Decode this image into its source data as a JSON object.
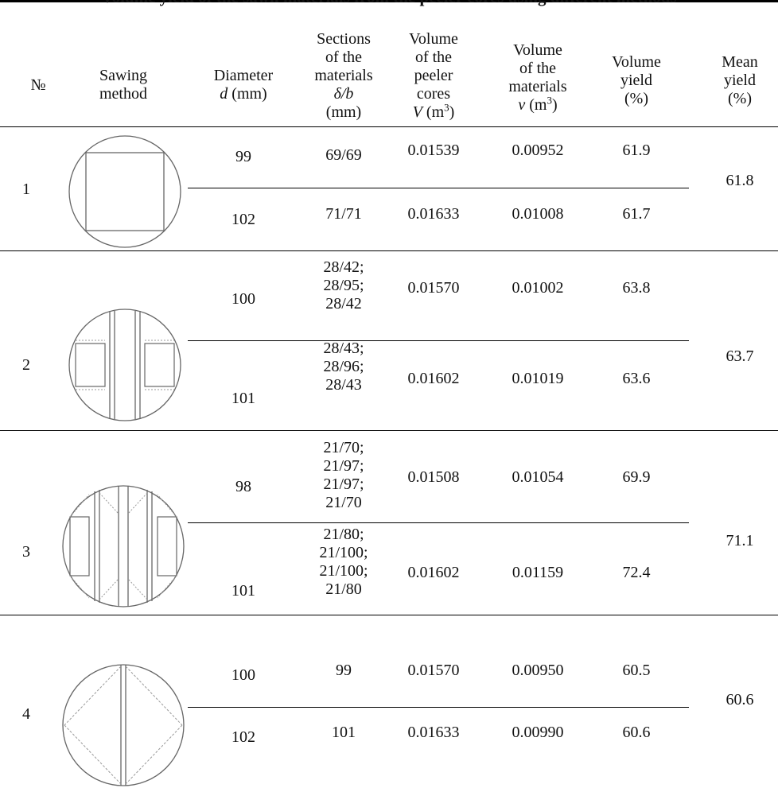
{
  "table": {
    "caption": "Volume yield of the sawn materials from the peeler cores using different methods",
    "headers": {
      "no": "№",
      "method": [
        "Sawing",
        "method"
      ],
      "diameter": [
        "Diameter",
        "d",
        "(mm)"
      ],
      "sections": [
        "Sections",
        "of the",
        "materials",
        "δ/b",
        "(mm)"
      ],
      "peeler_volume": [
        "Volume",
        "of the",
        "peeler",
        "cores",
        "V",
        "(m",
        "3",
        ")"
      ],
      "material_volume": [
        "Volume",
        "of the",
        "materials",
        "v",
        "(m",
        "3",
        ")"
      ],
      "volume_yield": [
        "Volume",
        "yield",
        "(%)"
      ],
      "mean_yield": [
        "Mean",
        "yield",
        "(%)"
      ]
    },
    "groups": [
      {
        "no": "1",
        "mean": "61.8",
        "diagram": "square-sawing-diagram",
        "rows": [
          {
            "d": "99",
            "sections": [
              "69/69"
            ],
            "V": "0.01539",
            "v": "0.00952",
            "yield": "61.9"
          },
          {
            "d": "102",
            "sections": [
              "71/71"
            ],
            "V": "0.01633",
            "v": "0.01008",
            "yield": "61.7"
          }
        ]
      },
      {
        "no": "2",
        "mean": "63.7",
        "diagram": "three-board-sawing-diagram",
        "rows": [
          {
            "d": "100",
            "sections": [
              "28/42;",
              "28/95;",
              "28/42"
            ],
            "V": "0.01570",
            "v": "0.01002",
            "yield": "63.8"
          },
          {
            "d": "101",
            "sections": [
              "28/43;",
              "28/96;",
              "28/43"
            ],
            "V": "0.01602",
            "v": "0.01019",
            "yield": "63.6"
          }
        ]
      },
      {
        "no": "3",
        "mean": "71.1",
        "diagram": "four-board-sawing-diagram",
        "rows": [
          {
            "d": "98",
            "sections": [
              "21/70;",
              "21/97;",
              "21/97;",
              "21/70"
            ],
            "V": "0.01508",
            "v": "0.01054",
            "yield": "69.9"
          },
          {
            "d": "101",
            "sections": [
              "21/80;",
              "21/100;",
              "21/100;",
              "21/80"
            ],
            "V": "0.01602",
            "v": "0.01159",
            "yield": "72.4"
          }
        ]
      },
      {
        "no": "4",
        "mean": "60.6",
        "diagram": "diamond-sawing-diagram",
        "rows": [
          {
            "d": "100",
            "sections": [
              "99"
            ],
            "V": "0.01570",
            "v": "0.00950",
            "yield": "60.5"
          },
          {
            "d": "102",
            "sections": [
              "101"
            ],
            "V": "0.01633",
            "v": "0.00990",
            "yield": "60.6"
          }
        ]
      }
    ]
  }
}
